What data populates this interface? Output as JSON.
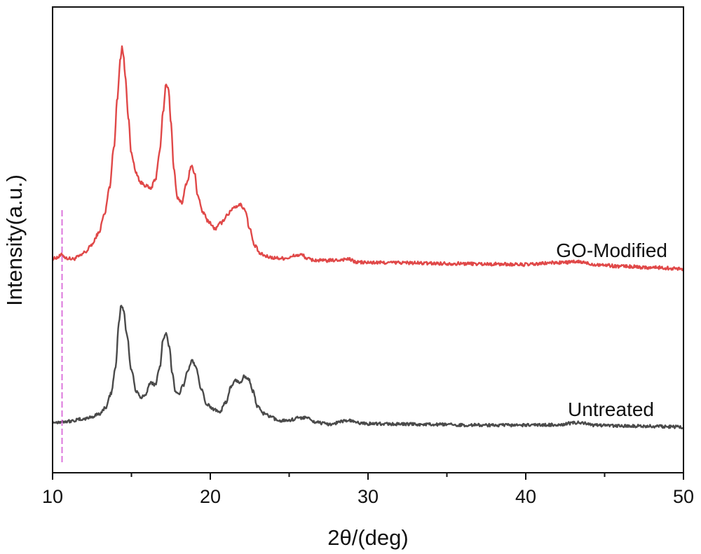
{
  "chart_data": {
    "type": "line",
    "title": "",
    "xlabel": "2θ/(deg)",
    "ylabel": "Intensity(a.u.)",
    "xlim": [
      10,
      50
    ],
    "xticks": [
      10,
      20,
      30,
      40,
      50
    ],
    "yticks_shown": false,
    "grid": false,
    "legend": "inline labels at right",
    "reference_line": {
      "x": 10.6,
      "color": "#d65bd6",
      "style": "dashed"
    },
    "series": [
      {
        "name": "GO-Modified",
        "color": "#e04848",
        "x": [
          10.0,
          10.3,
          10.6,
          10.9,
          11.3,
          11.7,
          12.1,
          12.5,
          12.9,
          13.3,
          13.6,
          13.9,
          14.1,
          14.3,
          14.4,
          14.5,
          14.6,
          14.8,
          15.0,
          15.3,
          15.6,
          15.9,
          16.2,
          16.5,
          16.8,
          17.0,
          17.2,
          17.35,
          17.5,
          17.7,
          17.9,
          18.2,
          18.5,
          18.8,
          19.0,
          19.2,
          19.5,
          19.9,
          20.3,
          20.7,
          21.1,
          21.5,
          21.9,
          22.2,
          22.5,
          22.8,
          23.2,
          23.6,
          24.0,
          24.5,
          25.0,
          25.4,
          25.8,
          26.2,
          26.6,
          27.2,
          28.0,
          28.7,
          29.3,
          30.0,
          32.0,
          34.0,
          36.0,
          38.0,
          40.0,
          42.0,
          43.3,
          44.5,
          46.0,
          48.0,
          50.0
        ],
        "y": [
          1.5,
          2.2,
          3.2,
          1.8,
          1.5,
          2.6,
          4.5,
          7.5,
          12.0,
          20.0,
          31.0,
          48.0,
          68.0,
          84.0,
          89.0,
          86.0,
          78.0,
          60.0,
          45.0,
          37.0,
          33.0,
          32.0,
          30.5,
          34.0,
          46.0,
          62.0,
          74.0,
          72.0,
          58.0,
          38.0,
          27.0,
          25.0,
          33.0,
          40.0,
          37.0,
          28.0,
          21.0,
          17.0,
          14.0,
          16.5,
          20.0,
          23.0,
          24.0,
          22.0,
          14.0,
          7.0,
          3.5,
          2.5,
          2.0,
          1.8,
          2.0,
          3.0,
          3.2,
          1.5,
          1.0,
          0.8,
          1.0,
          1.5,
          0.2,
          0.0,
          0.0,
          -0.3,
          -0.4,
          -0.6,
          -0.8,
          0.0,
          0.3,
          -0.8,
          -1.5,
          -2.0,
          -2.5
        ]
      },
      {
        "name": "Untreated",
        "color": "#4a4a4a",
        "x": [
          10.0,
          11.0,
          12.0,
          12.5,
          13.0,
          13.4,
          13.7,
          14.0,
          14.2,
          14.35,
          14.5,
          14.7,
          15.0,
          15.3,
          15.6,
          15.9,
          16.2,
          16.5,
          16.8,
          17.0,
          17.2,
          17.4,
          17.6,
          17.8,
          18.0,
          18.3,
          18.6,
          18.85,
          19.1,
          19.4,
          19.8,
          20.2,
          20.6,
          21.0,
          21.3,
          21.6,
          21.9,
          22.15,
          22.4,
          22.7,
          23.0,
          23.4,
          23.8,
          24.3,
          25.0,
          25.6,
          26.1,
          26.5,
          27.5,
          28.7,
          29.5,
          30.0,
          32.0,
          34.0,
          36.0,
          38.0,
          40.0,
          42.0,
          43.3,
          44.5,
          46.0,
          48.0,
          50.0
        ],
        "y": [
          0.0,
          0.5,
          1.5,
          2.5,
          4.0,
          7.0,
          13.0,
          25.0,
          45.0,
          53.0,
          51.0,
          40.0,
          24.0,
          14.0,
          11.0,
          13.0,
          18.0,
          17.0,
          25.0,
          37.0,
          40.0,
          34.0,
          22.0,
          14.0,
          13.0,
          17.0,
          24.0,
          28.0,
          25.0,
          15.0,
          8.0,
          6.0,
          5.0,
          9.0,
          16.0,
          19.0,
          18.0,
          21.0,
          20.0,
          14.0,
          7.0,
          4.0,
          2.5,
          0.8,
          1.0,
          2.0,
          2.3,
          0.3,
          -0.8,
          0.8,
          -0.3,
          -0.6,
          -0.8,
          -1.0,
          -1.2,
          -1.3,
          -1.3,
          -1.1,
          -0.1,
          -1.4,
          -1.6,
          -1.8,
          -2.1
        ]
      }
    ]
  }
}
